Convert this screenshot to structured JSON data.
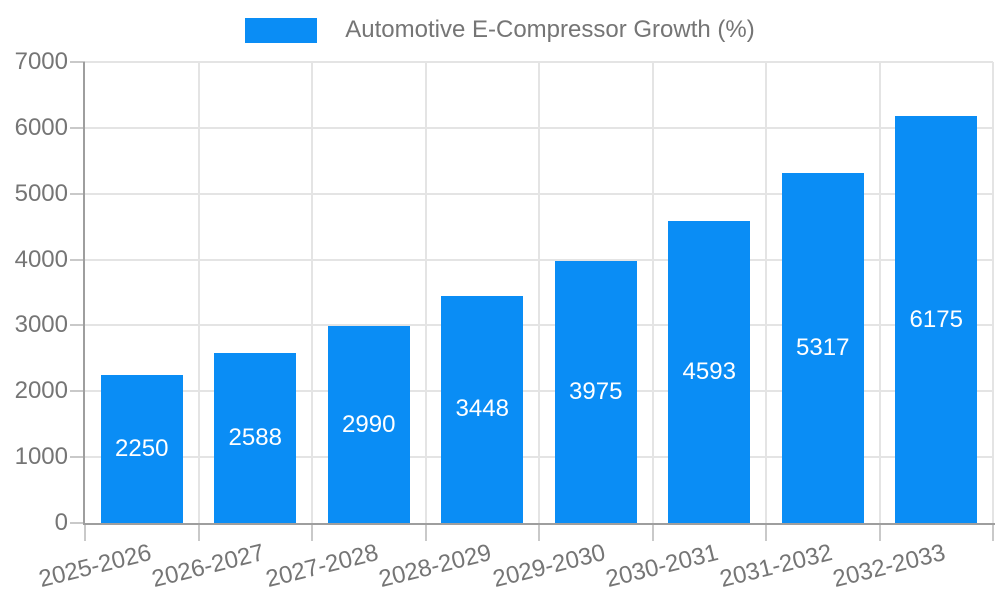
{
  "chart_data": {
    "type": "bar",
    "title": "Automotive E-Compressor Growth (%)",
    "categories": [
      "2025-2026",
      "2026-2027",
      "2027-2028",
      "2028-2029",
      "2029-2030",
      "2030-2031",
      "2031-2032",
      "2032-2033"
    ],
    "values": [
      2250,
      2588,
      2990,
      3448,
      3975,
      4593,
      5317,
      6175
    ],
    "xlabel": "",
    "ylabel": "",
    "ylim": [
      0,
      7000
    ],
    "yticks": [
      0,
      1000,
      2000,
      3000,
      4000,
      5000,
      6000,
      7000
    ],
    "grid": true,
    "legend_position": "top",
    "value_labels": "inside-center",
    "colors": {
      "bar": "#0a8df5",
      "value_label": "#ffffff",
      "axis_text": "#757575",
      "axis_line": "#9e9e9e",
      "tick": "#c9c9c9",
      "gridline": "#e4e4e4",
      "background": "#ffffff"
    }
  }
}
